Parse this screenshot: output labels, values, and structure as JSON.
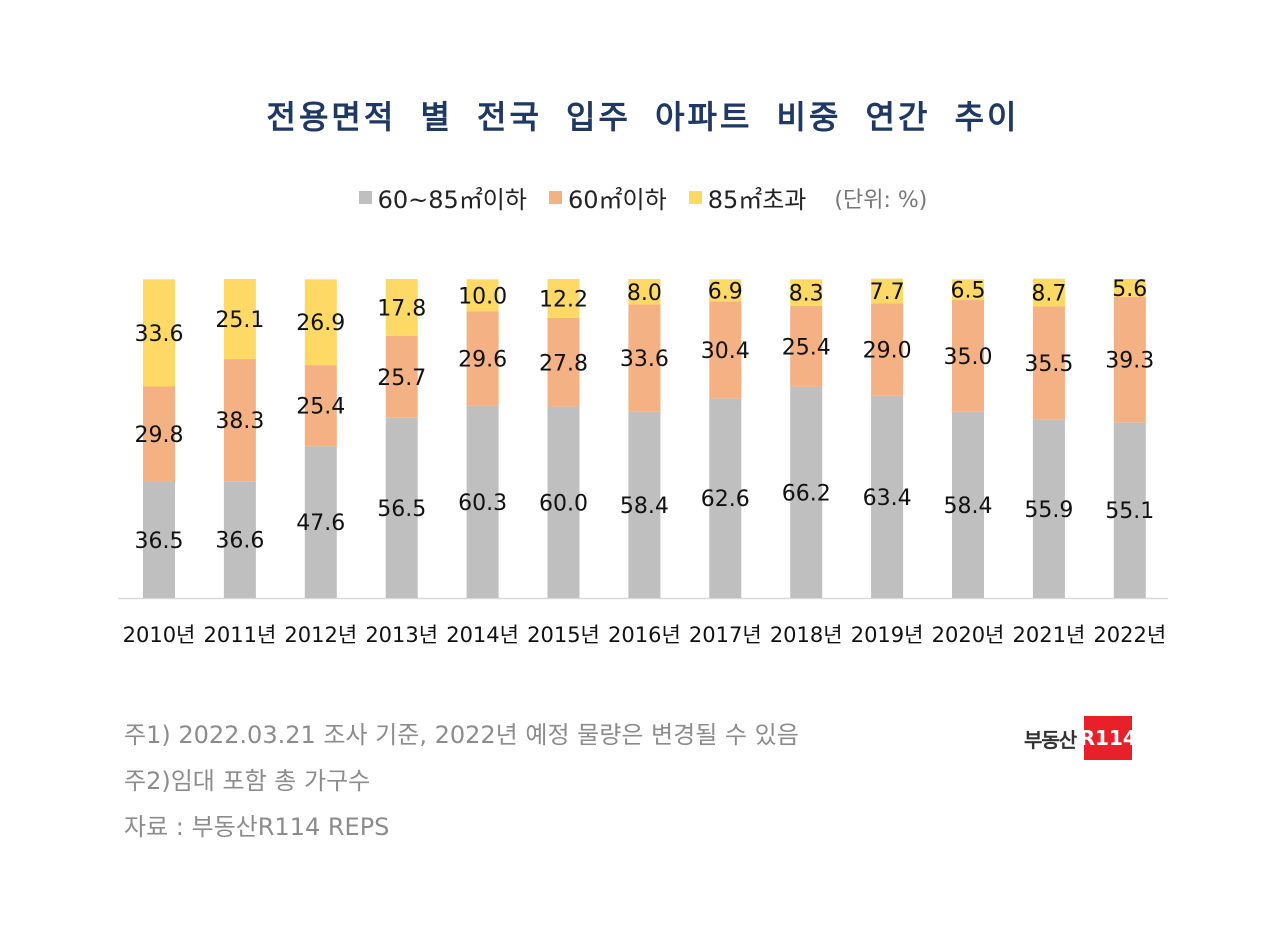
{
  "colors": {
    "large": "#bfbfbf",
    "small": "#f4b183",
    "xlarge": "#ffd966",
    "title": "#1f3864"
  },
  "chart_data": {
    "type": "bar",
    "stacked": true,
    "title": "전용면적 별 전국 입주 아파트 비중 연간 추이",
    "unit": "(단위: %)",
    "ylim": [
      0,
      100
    ],
    "categories": [
      "2010년",
      "2011년",
      "2012년",
      "2013년",
      "2014년",
      "2015년",
      "2016년",
      "2017년",
      "2018년",
      "2019년",
      "2020년",
      "2021년",
      "2022년"
    ],
    "series": [
      {
        "name": "60~85㎡이하",
        "color": "#bfbfbf",
        "values": [
          36.5,
          36.6,
          47.6,
          56.5,
          60.3,
          60.0,
          58.4,
          62.6,
          66.2,
          63.4,
          58.4,
          55.9,
          55.1
        ]
      },
      {
        "name": "60㎡이하",
        "color": "#f4b183",
        "values": [
          29.8,
          38.3,
          25.4,
          25.7,
          29.6,
          27.8,
          33.6,
          30.4,
          25.4,
          29.0,
          35.0,
          35.5,
          39.3
        ]
      },
      {
        "name": "85㎡초과",
        "color": "#ffd966",
        "values": [
          33.6,
          25.1,
          26.9,
          17.8,
          10.0,
          12.2,
          8.0,
          6.9,
          8.3,
          7.7,
          6.5,
          8.7,
          5.6
        ]
      }
    ],
    "value_labels": [
      [
        "36.5",
        "36.6",
        "47.6",
        "56.5",
        "60.3",
        "60.0",
        "58.4",
        "62.6",
        "66.2",
        "63.4",
        "58.4",
        "55.9",
        "55.1"
      ],
      [
        "29.8",
        "38.3",
        "25.4",
        "25.7",
        "29.6",
        "27.8",
        "33.6",
        "30.4",
        "25.4",
        "29.0",
        "35.0",
        "35.5",
        "39.3"
      ],
      [
        "33.6",
        "25.1",
        "26.9",
        "17.8",
        "10.0",
        "12.2",
        "8.0",
        "6.9",
        "8.3",
        "7.7",
        "6.5",
        "8.7",
        "5.6"
      ]
    ]
  },
  "notes": [
    "주1) 2022.03.21 조사 기준, 2022년 예정 물량은 변경될 수 있음",
    "주2)임대 포함 총 가구수",
    "자료 : 부동산R114 REPS"
  ],
  "logo": {
    "text": "부동산",
    "badge": "R114"
  }
}
